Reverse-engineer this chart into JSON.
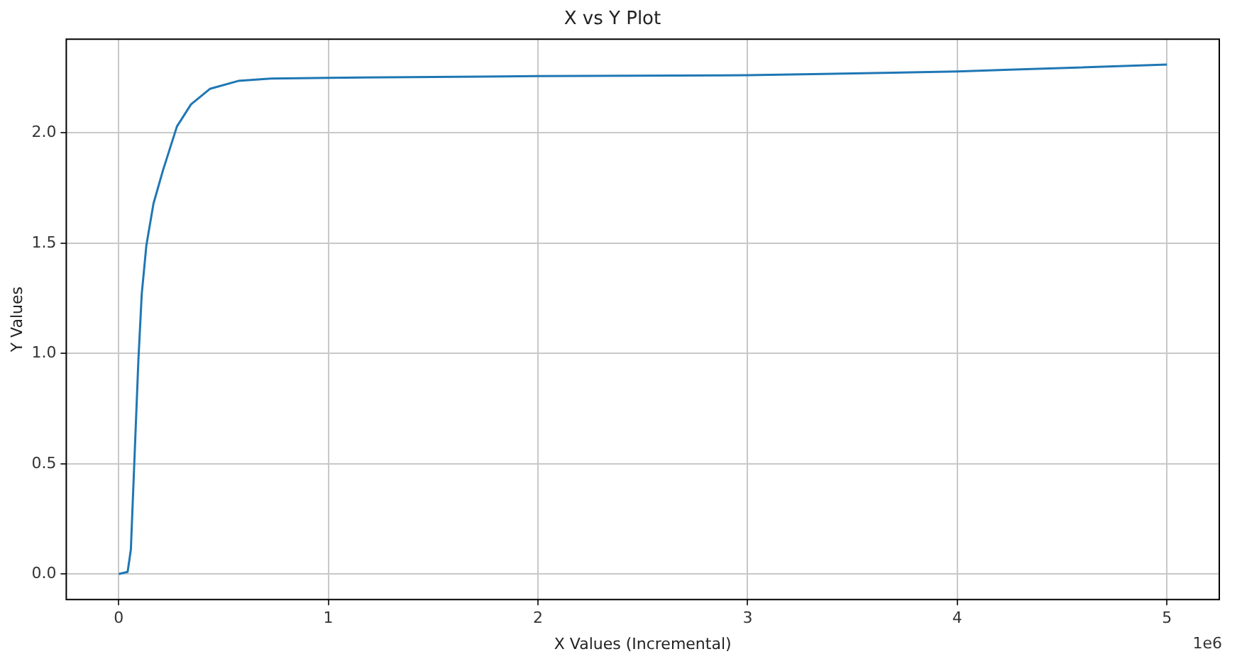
{
  "chart_data": {
    "type": "line",
    "title": "X vs Y Plot",
    "xlabel": "X Values (Incremental)",
    "ylabel": "Y Values",
    "x": [
      0,
      0.0426,
      0.058,
      0.076,
      0.094,
      0.11,
      0.132,
      0.166,
      0.211,
      0.278,
      0.345,
      0.435,
      0.57,
      0.726,
      1,
      1.735,
      2,
      3,
      3.36,
      4,
      4.25,
      5
    ],
    "series": [
      {
        "color": "#1f77b4",
        "values": [
          0,
          0.01,
          0.11,
          0.54,
          0.97,
          1.27,
          1.49,
          1.68,
          1.83,
          2.03,
          2.13,
          2.2,
          2.236,
          2.247,
          2.25,
          2.256,
          2.258,
          2.262,
          2.268,
          2.279,
          2.287,
          2.31
        ]
      }
    ],
    "xlim": [
      -0.25,
      5.25
    ],
    "ylim": [
      -0.1155,
      2.4255
    ],
    "xticks": [
      0,
      1,
      2,
      3,
      4,
      5
    ],
    "yticks": [
      {
        "value": 0,
        "label": "0.0"
      },
      {
        "value": 0.5,
        "label": "0.5"
      },
      {
        "value": 1,
        "label": "1.0"
      },
      {
        "value": 1.5,
        "label": "1.5"
      },
      {
        "value": 2,
        "label": "2.0"
      }
    ],
    "annotations": [
      "1e6"
    ],
    "grid": true,
    "legend": false
  }
}
